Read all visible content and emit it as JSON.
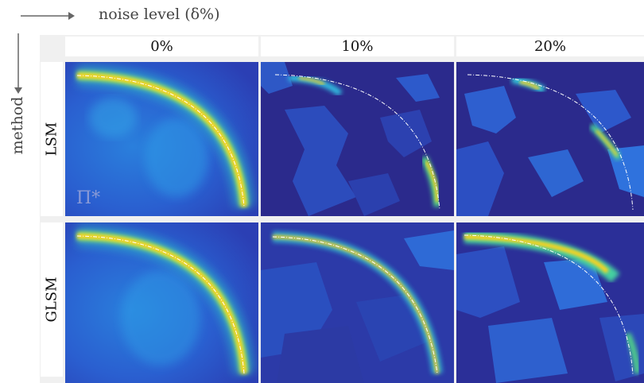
{
  "axes": {
    "horizontal_label": "noise level (δ%)",
    "vertical_label": "method"
  },
  "columns": [
    "0%",
    "10%",
    "20%"
  ],
  "rows": [
    "LSM",
    "GLSM"
  ],
  "panel_annotation": "Π*",
  "colors": {
    "background_low": "#2b2a8c",
    "mid": "#1f78d1",
    "high": "#ffd21a",
    "true_boundary": "#ffffff"
  }
}
